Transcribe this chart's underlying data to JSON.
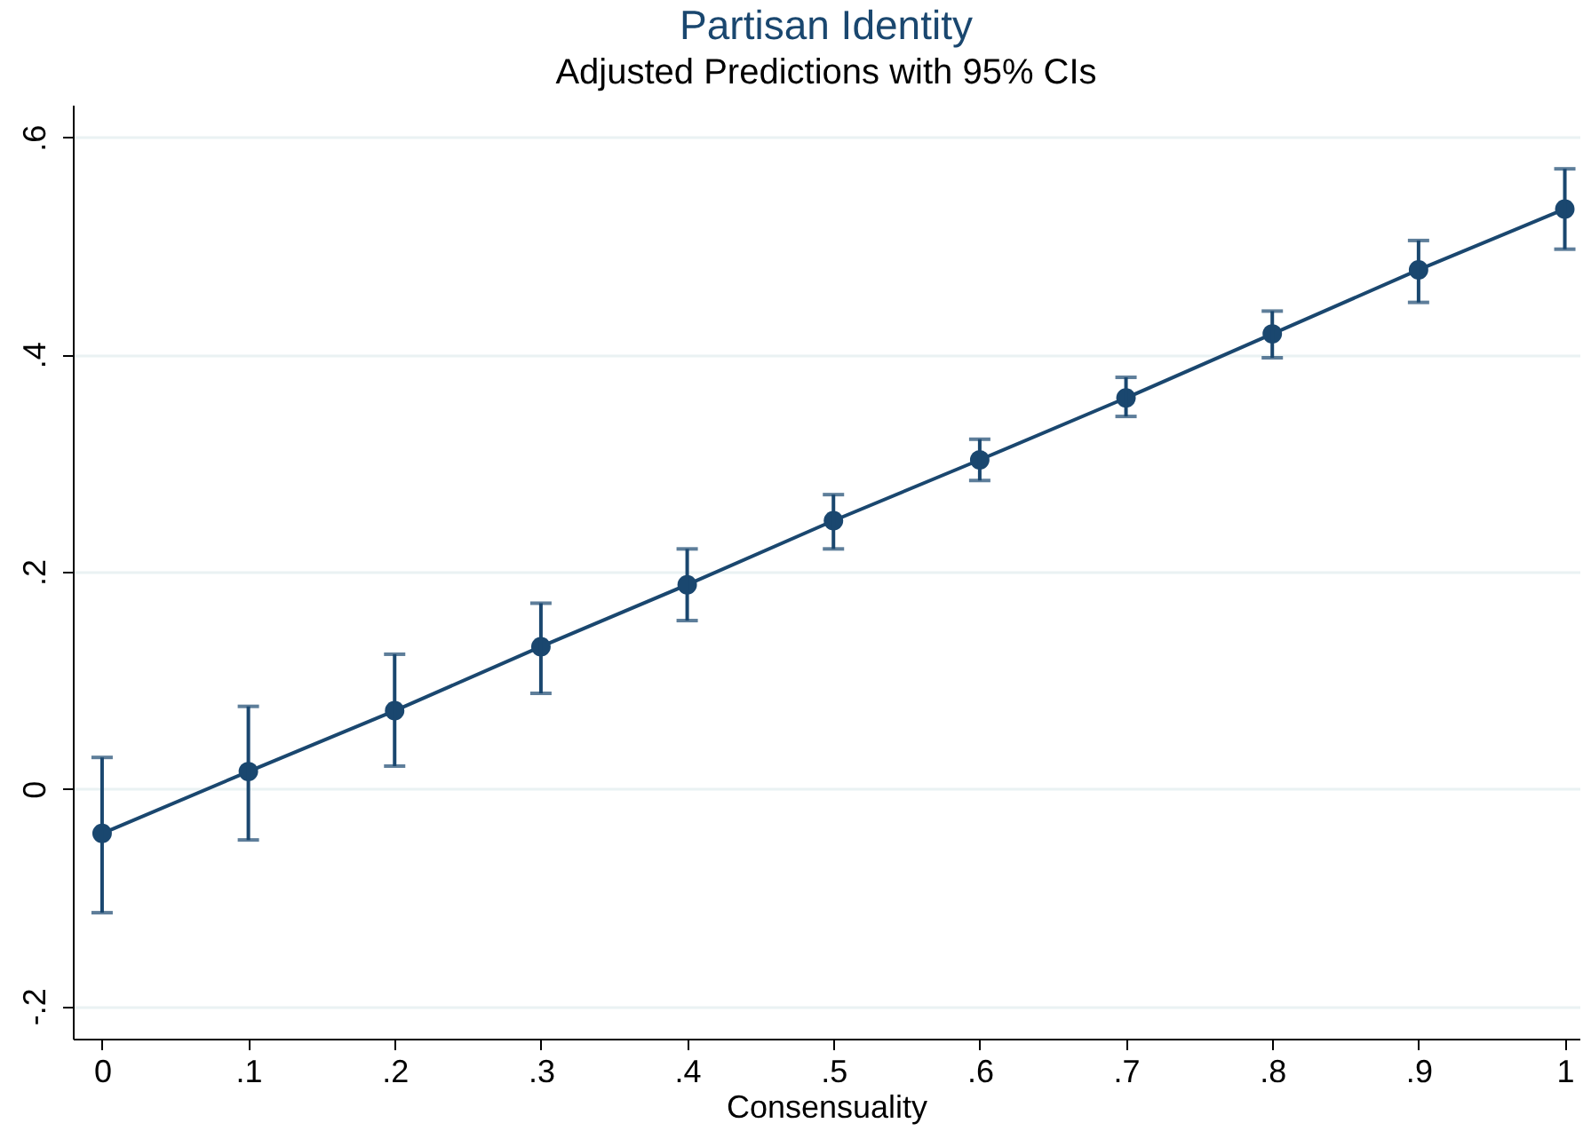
{
  "chart_data": {
    "type": "line",
    "title": "Partisan Identity",
    "subtitle": "Adjusted Predictions with 95% CIs",
    "xlabel": "Consensuality",
    "x": [
      0,
      0.1,
      0.2,
      0.3,
      0.4,
      0.5,
      0.6,
      0.7,
      0.8,
      0.9,
      1
    ],
    "series": [
      {
        "color": "#1a476f",
        "values": [
          -0.041,
          0.016,
          0.072,
          0.131,
          0.188,
          0.247,
          0.303,
          0.36,
          0.419,
          0.478,
          0.534
        ],
        "errors": [
          [
            -0.114,
            0.029
          ],
          [
            -0.047,
            0.076
          ],
          [
            0.021,
            0.124
          ],
          [
            0.088,
            0.171
          ],
          [
            0.155,
            0.221
          ],
          [
            0.221,
            0.271
          ],
          [
            0.284,
            0.322
          ],
          [
            0.343,
            0.379
          ],
          [
            0.397,
            0.44
          ],
          [
            0.448,
            0.505
          ],
          [
            0.497,
            0.571
          ]
        ]
      }
    ],
    "xlim": [
      -0.02,
      1.01
    ],
    "ylim": [
      -0.23,
      0.63
    ],
    "xticks": [
      0,
      {
        "value": 0.1,
        "label": ".1"
      },
      {
        "value": 0.2,
        "label": ".2"
      },
      {
        "value": 0.3,
        "label": ".3"
      },
      {
        "value": 0.4,
        "label": ".4"
      },
      {
        "value": 0.5,
        "label": ".5"
      },
      {
        "value": 0.6,
        "label": ".6"
      },
      {
        "value": 0.7,
        "label": ".7"
      },
      {
        "value": 0.8,
        "label": ".8"
      },
      {
        "value": 0.9,
        "label": ".9"
      },
      1
    ],
    "yticks": [
      {
        "value": -0.2,
        "label": "-.2"
      },
      0,
      {
        "value": 0.2,
        "label": ".2"
      },
      {
        "value": 0.4,
        "label": ".4"
      },
      {
        "value": 0.6,
        "label": ".6"
      }
    ],
    "grid": "y",
    "marker": "circle",
    "line_style": "solid"
  }
}
